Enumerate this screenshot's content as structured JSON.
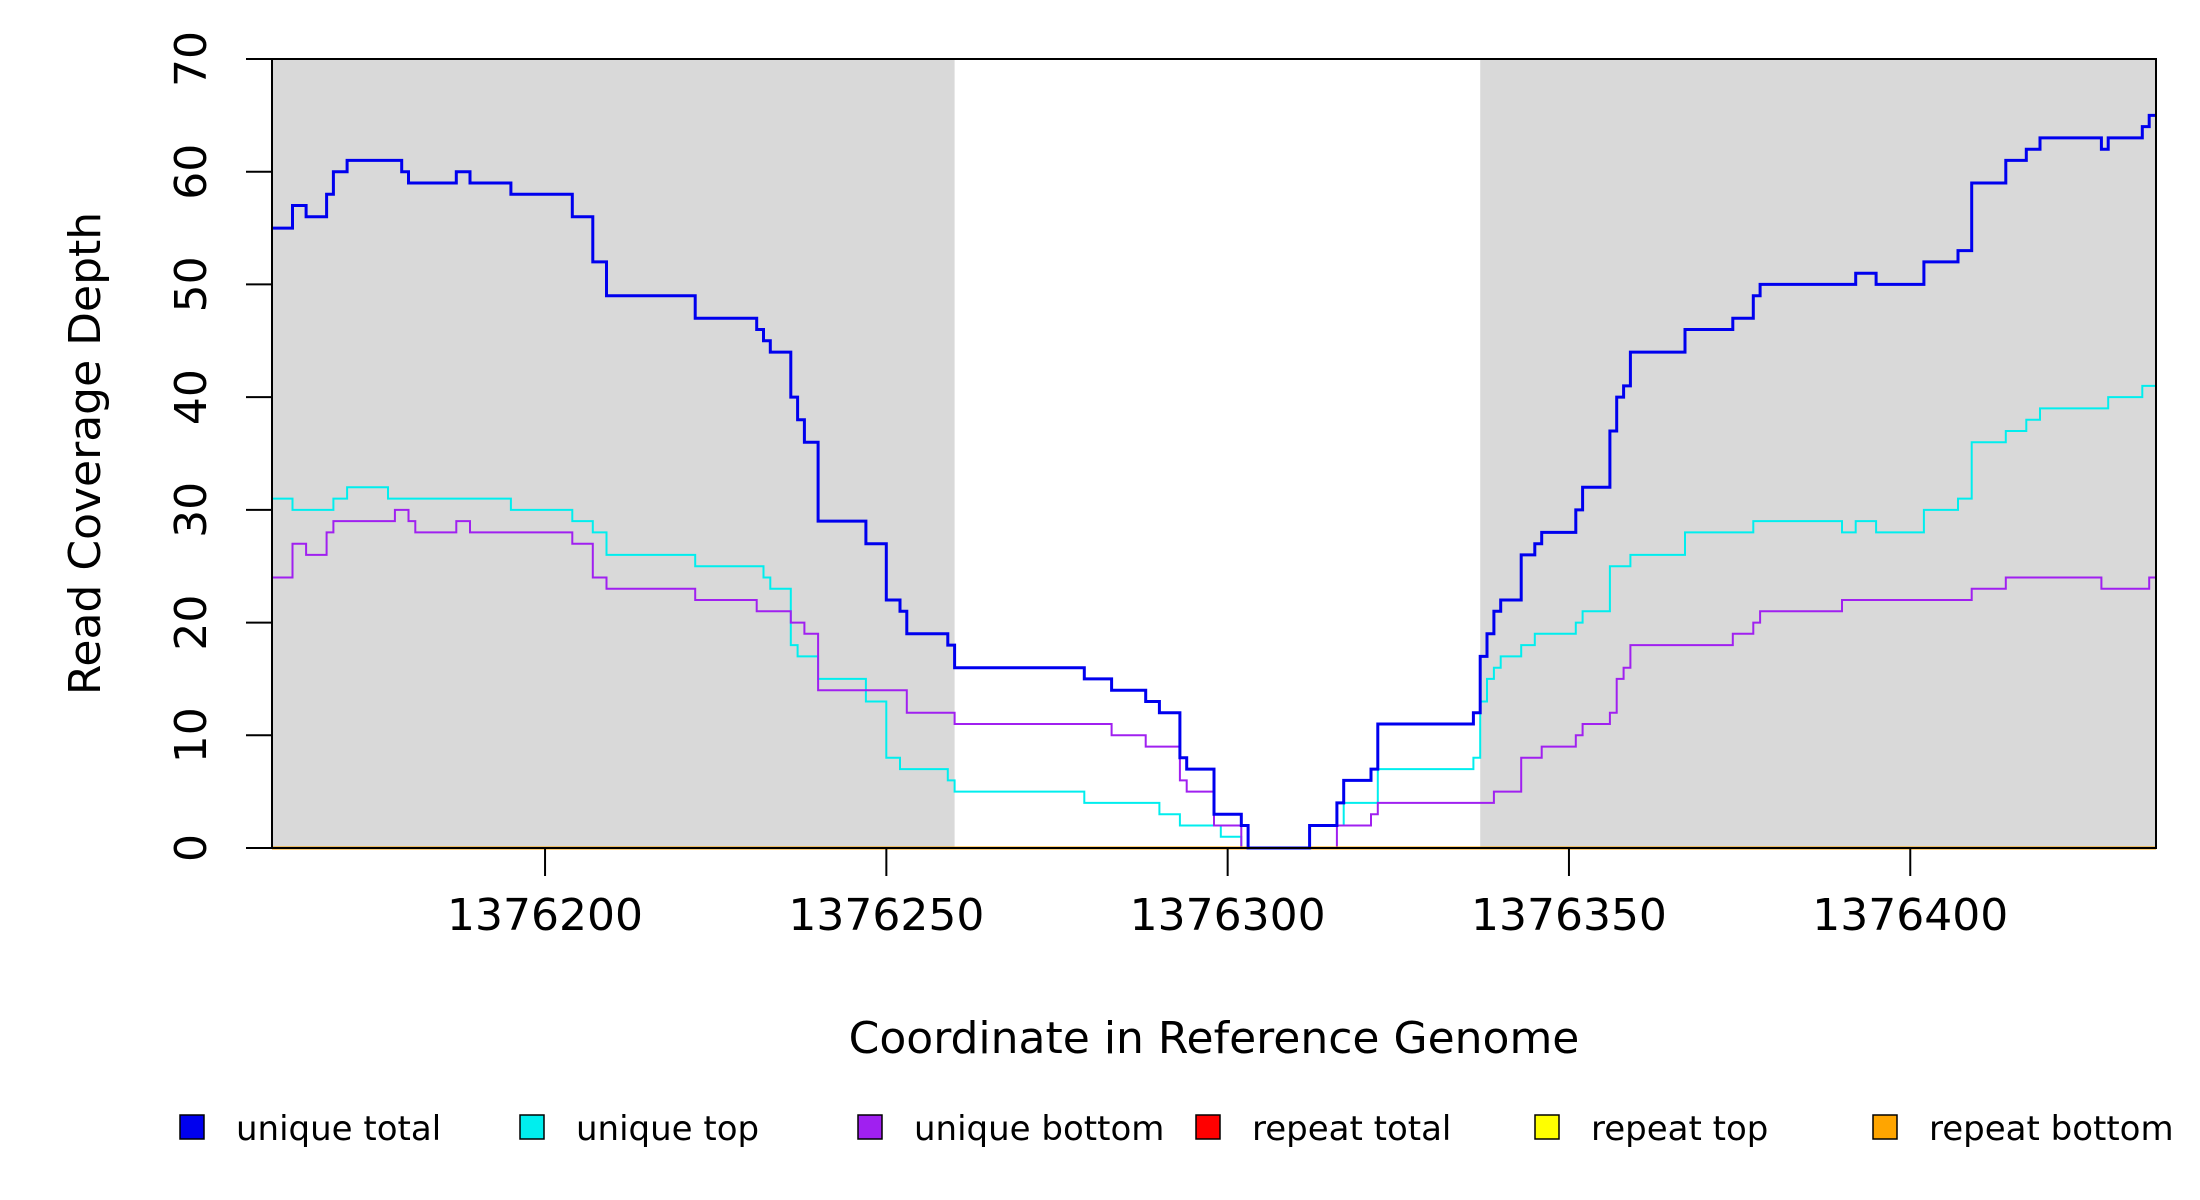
{
  "chart_data": {
    "type": "line",
    "title": "",
    "xlabel": "Coordinate in Reference Genome",
    "ylabel": "Read Coverage Depth",
    "xlim": [
      1376160,
      1376436
    ],
    "ylim": [
      0,
      70
    ],
    "x_ticks": [
      1376200,
      1376250,
      1376300,
      1376350,
      1376400
    ],
    "x_tick_labels": [
      "1376200",
      "1376250",
      "1376300",
      "1376350",
      "1376400"
    ],
    "y_ticks": [
      0,
      10,
      20,
      30,
      40,
      50,
      60,
      70
    ],
    "y_tick_labels": [
      "0",
      "10",
      "20",
      "30",
      "40",
      "50",
      "60",
      "70"
    ],
    "shaded_regions": [
      [
        1376160,
        1376260
      ],
      [
        1376337,
        1376436
      ]
    ],
    "shade_color": "#d9d9d9",
    "grid": false,
    "legend_position": "bottom",
    "series": [
      {
        "name": "unique total",
        "color": "#0000ee",
        "step": true,
        "points": [
          [
            1376160,
            55
          ],
          [
            1376163,
            57
          ],
          [
            1376165,
            56
          ],
          [
            1376168,
            58
          ],
          [
            1376169,
            60
          ],
          [
            1376171,
            61
          ],
          [
            1376179,
            60
          ],
          [
            1376180,
            59
          ],
          [
            1376187,
            60
          ],
          [
            1376189,
            59
          ],
          [
            1376195,
            58
          ],
          [
            1376204,
            56
          ],
          [
            1376207,
            52
          ],
          [
            1376209,
            49
          ],
          [
            1376222,
            47
          ],
          [
            1376231,
            46
          ],
          [
            1376232,
            45
          ],
          [
            1376233,
            44
          ],
          [
            1376236,
            40
          ],
          [
            1376237,
            38
          ],
          [
            1376238,
            36
          ],
          [
            1376240,
            29
          ],
          [
            1376247,
            27
          ],
          [
            1376250,
            22
          ],
          [
            1376252,
            21
          ],
          [
            1376253,
            19
          ],
          [
            1376259,
            18
          ],
          [
            1376260,
            16
          ],
          [
            1376279,
            15
          ],
          [
            1376283,
            14
          ],
          [
            1376288,
            13
          ],
          [
            1376290,
            12
          ],
          [
            1376293,
            8
          ],
          [
            1376294,
            7
          ],
          [
            1376298,
            3
          ],
          [
            1376302,
            2
          ],
          [
            1376303,
            0
          ],
          [
            1376312,
            2
          ],
          [
            1376316,
            4
          ],
          [
            1376317,
            6
          ],
          [
            1376321,
            7
          ],
          [
            1376322,
            11
          ],
          [
            1376336,
            12
          ],
          [
            1376337,
            17
          ],
          [
            1376338,
            19
          ],
          [
            1376339,
            21
          ],
          [
            1376340,
            22
          ],
          [
            1376343,
            26
          ],
          [
            1376345,
            27
          ],
          [
            1376346,
            28
          ],
          [
            1376351,
            30
          ],
          [
            1376352,
            32
          ],
          [
            1376356,
            37
          ],
          [
            1376357,
            40
          ],
          [
            1376358,
            41
          ],
          [
            1376359,
            44
          ],
          [
            1376367,
            46
          ],
          [
            1376374,
            47
          ],
          [
            1376377,
            49
          ],
          [
            1376378,
            50
          ],
          [
            1376392,
            51
          ],
          [
            1376395,
            50
          ],
          [
            1376402,
            52
          ],
          [
            1376407,
            53
          ],
          [
            1376409,
            59
          ],
          [
            1376414,
            61
          ],
          [
            1376417,
            62
          ],
          [
            1376419,
            63
          ],
          [
            1376428,
            62
          ],
          [
            1376429,
            63
          ],
          [
            1376434,
            64
          ],
          [
            1376435,
            65
          ],
          [
            1376436,
            65
          ]
        ]
      },
      {
        "name": "unique top",
        "color": "#00eeee",
        "step": true,
        "points": [
          [
            1376160,
            31
          ],
          [
            1376163,
            30
          ],
          [
            1376169,
            31
          ],
          [
            1376171,
            32
          ],
          [
            1376177,
            31
          ],
          [
            1376195,
            30
          ],
          [
            1376204,
            29
          ],
          [
            1376207,
            28
          ],
          [
            1376209,
            26
          ],
          [
            1376222,
            25
          ],
          [
            1376232,
            24
          ],
          [
            1376233,
            23
          ],
          [
            1376236,
            18
          ],
          [
            1376237,
            17
          ],
          [
            1376240,
            15
          ],
          [
            1376247,
            13
          ],
          [
            1376250,
            8
          ],
          [
            1376252,
            7
          ],
          [
            1376259,
            6
          ],
          [
            1376260,
            5
          ],
          [
            1376279,
            4
          ],
          [
            1376290,
            3
          ],
          [
            1376293,
            2
          ],
          [
            1376299,
            1
          ],
          [
            1376302,
            0
          ],
          [
            1376312,
            2
          ],
          [
            1376317,
            4
          ],
          [
            1376322,
            7
          ],
          [
            1376336,
            8
          ],
          [
            1376337,
            13
          ],
          [
            1376338,
            15
          ],
          [
            1376339,
            16
          ],
          [
            1376340,
            17
          ],
          [
            1376343,
            18
          ],
          [
            1376345,
            19
          ],
          [
            1376351,
            20
          ],
          [
            1376352,
            21
          ],
          [
            1376356,
            25
          ],
          [
            1376359,
            26
          ],
          [
            1376367,
            28
          ],
          [
            1376377,
            29
          ],
          [
            1376390,
            28
          ],
          [
            1376392,
            29
          ],
          [
            1376395,
            28
          ],
          [
            1376402,
            30
          ],
          [
            1376407,
            31
          ],
          [
            1376409,
            36
          ],
          [
            1376414,
            37
          ],
          [
            1376417,
            38
          ],
          [
            1376419,
            39
          ],
          [
            1376429,
            40
          ],
          [
            1376434,
            41
          ],
          [
            1376436,
            41
          ]
        ]
      },
      {
        "name": "unique bottom",
        "color": "#a020f0",
        "step": true,
        "points": [
          [
            1376160,
            24
          ],
          [
            1376163,
            27
          ],
          [
            1376165,
            26
          ],
          [
            1376168,
            28
          ],
          [
            1376169,
            29
          ],
          [
            1376178,
            30
          ],
          [
            1376180,
            29
          ],
          [
            1376181,
            28
          ],
          [
            1376187,
            29
          ],
          [
            1376189,
            28
          ],
          [
            1376204,
            27
          ],
          [
            1376207,
            24
          ],
          [
            1376209,
            23
          ],
          [
            1376222,
            22
          ],
          [
            1376231,
            21
          ],
          [
            1376236,
            20
          ],
          [
            1376238,
            19
          ],
          [
            1376240,
            14
          ],
          [
            1376253,
            12
          ],
          [
            1376260,
            11
          ],
          [
            1376283,
            10
          ],
          [
            1376288,
            9
          ],
          [
            1376293,
            6
          ],
          [
            1376294,
            5
          ],
          [
            1376298,
            2
          ],
          [
            1376302,
            0
          ],
          [
            1376316,
            2
          ],
          [
            1376321,
            3
          ],
          [
            1376322,
            4
          ],
          [
            1376339,
            5
          ],
          [
            1376343,
            8
          ],
          [
            1376346,
            9
          ],
          [
            1376351,
            10
          ],
          [
            1376352,
            11
          ],
          [
            1376356,
            12
          ],
          [
            1376357,
            15
          ],
          [
            1376358,
            16
          ],
          [
            1376359,
            18
          ],
          [
            1376374,
            19
          ],
          [
            1376377,
            20
          ],
          [
            1376378,
            21
          ],
          [
            1376390,
            22
          ],
          [
            1376409,
            23
          ],
          [
            1376414,
            24
          ],
          [
            1376428,
            23
          ],
          [
            1376435,
            24
          ],
          [
            1376436,
            24
          ]
        ]
      },
      {
        "name": "repeat total",
        "color": "#ff0000",
        "step": true,
        "points": [
          [
            1376160,
            0
          ],
          [
            1376436,
            0
          ]
        ]
      },
      {
        "name": "repeat top",
        "color": "#ffff00",
        "step": true,
        "points": [
          [
            1376160,
            0
          ],
          [
            1376436,
            0
          ]
        ]
      },
      {
        "name": "repeat bottom",
        "color": "#ffa500",
        "step": true,
        "points": [
          [
            1376160,
            0
          ],
          [
            1376436,
            0
          ]
        ]
      }
    ]
  }
}
